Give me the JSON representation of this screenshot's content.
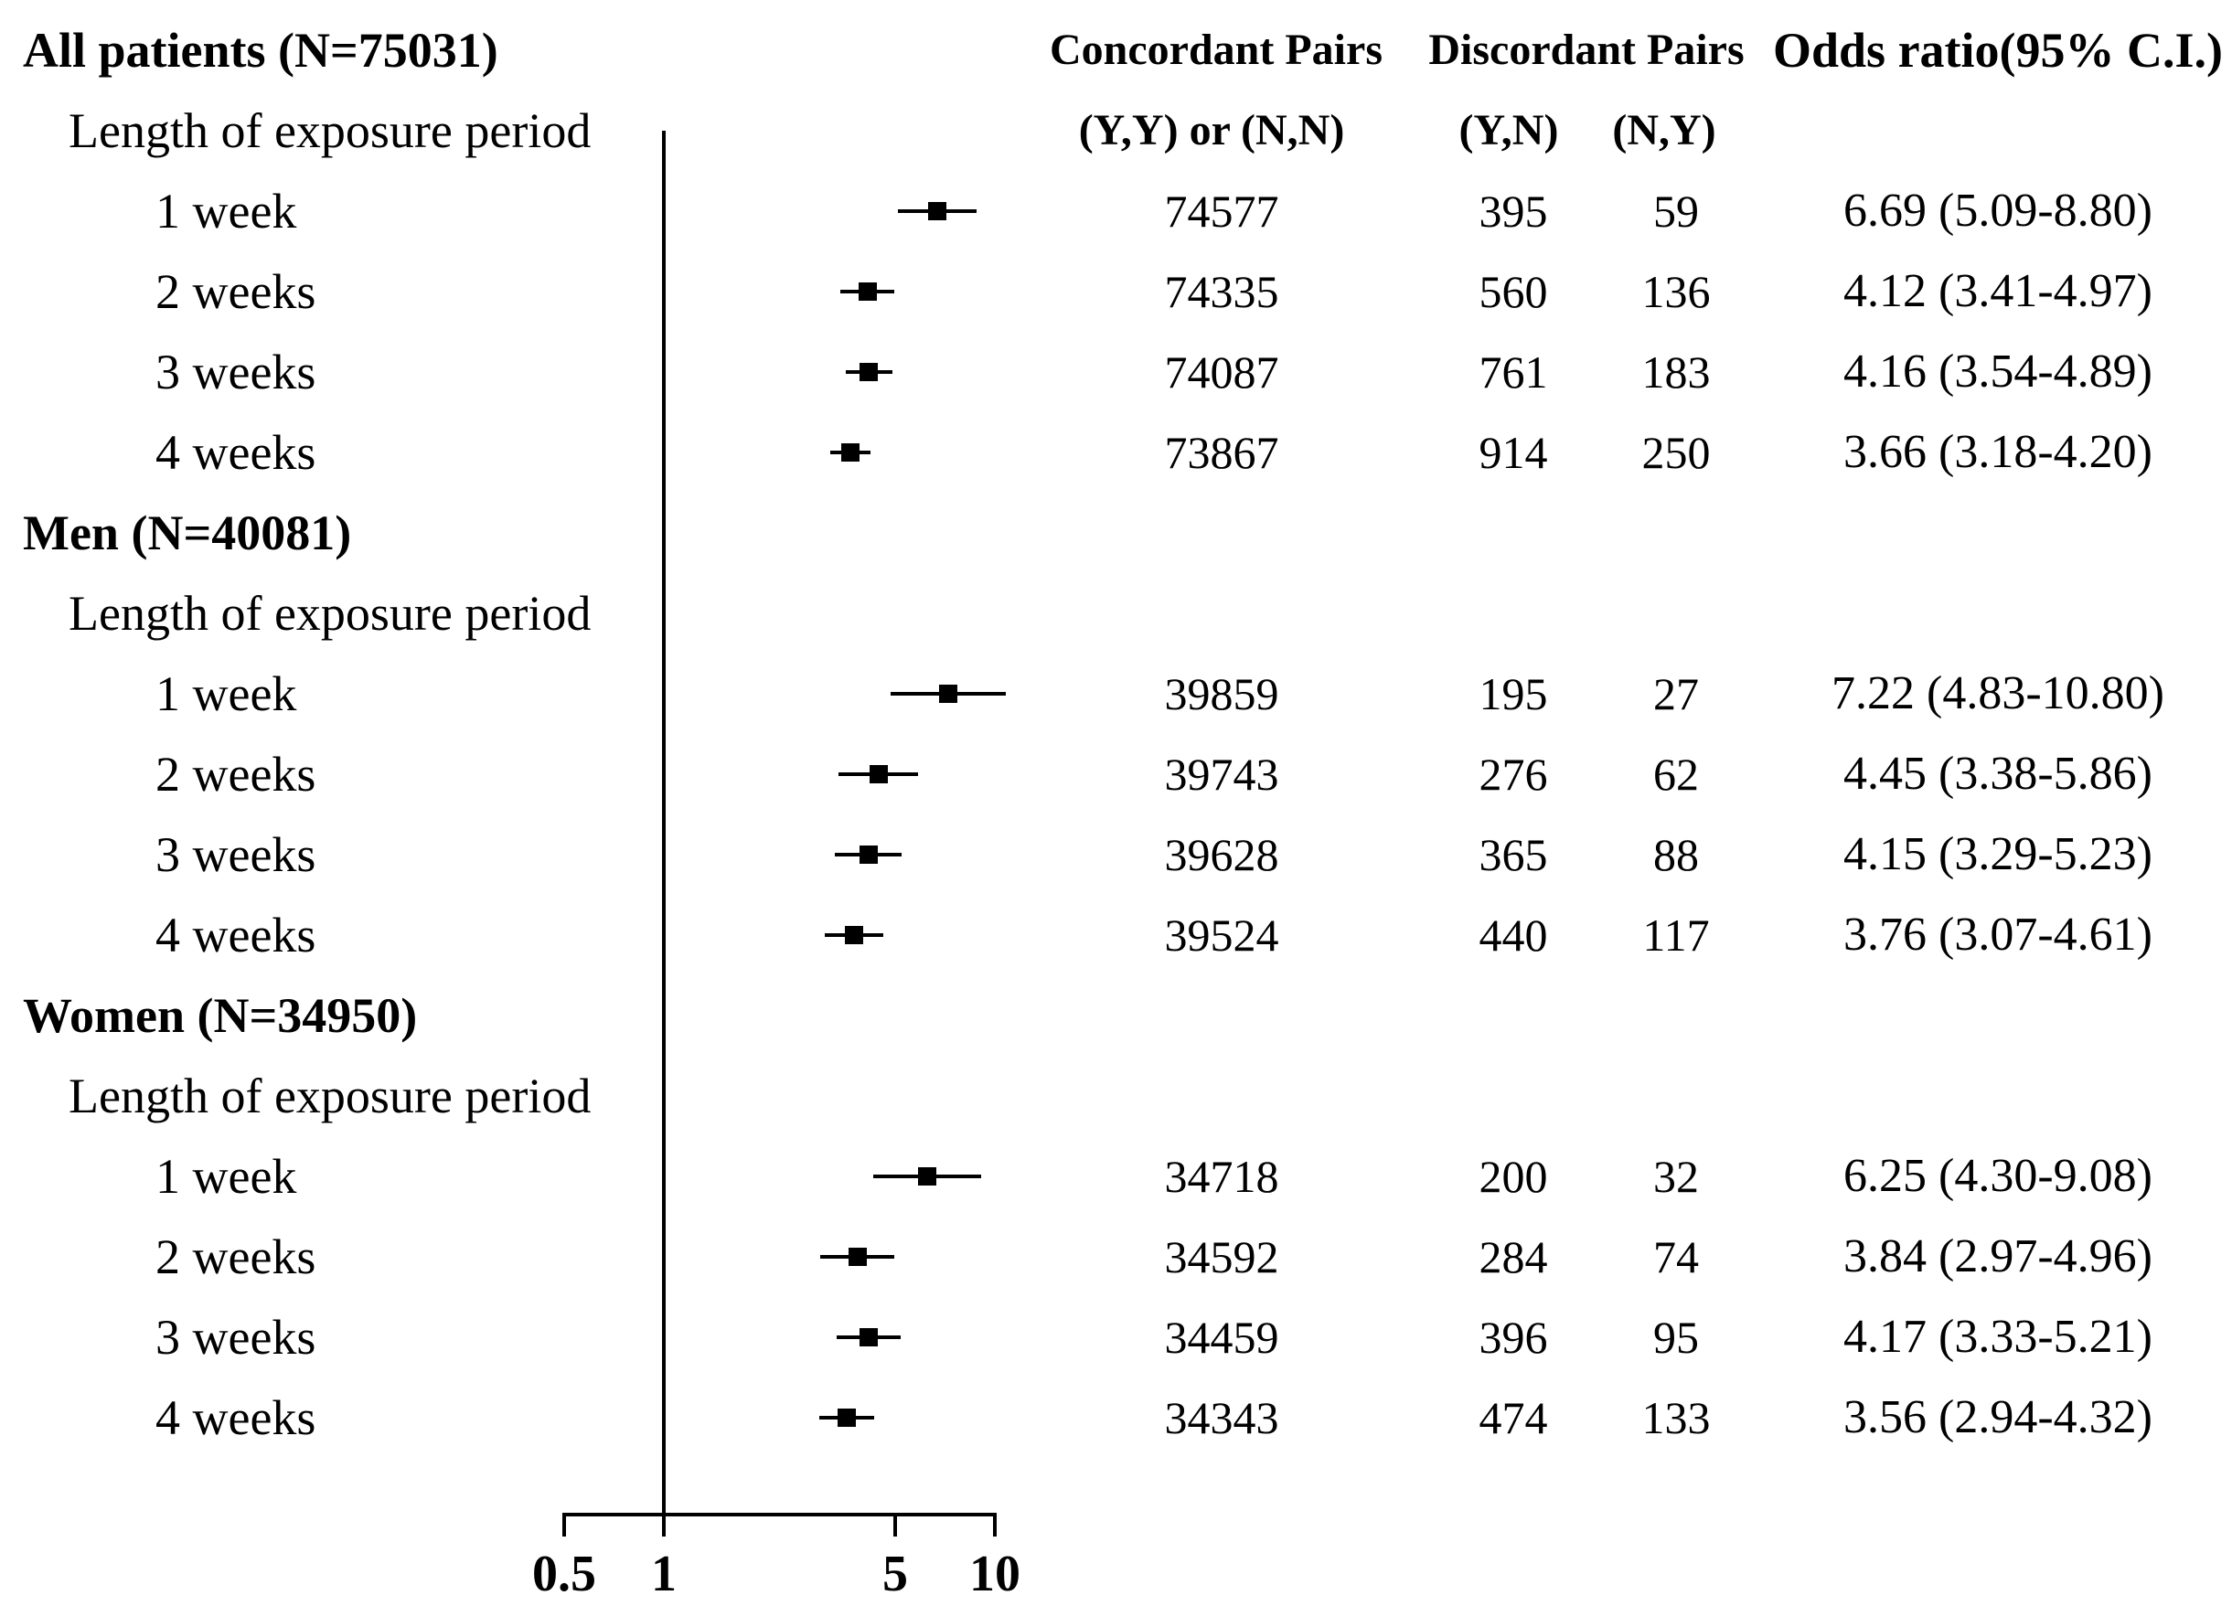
{
  "colors": {
    "foreground": "#000000",
    "background": "#ffffff"
  },
  "columns": {
    "concordant": {
      "title": "Concordant Pairs",
      "subtitle": "(Y,Y) or (N,N)"
    },
    "discordant": {
      "title": "Discordant Pairs",
      "sub_yn": "(Y,N)",
      "sub_ny": "(N,Y)"
    },
    "odds_ratio": {
      "title": "Odds ratio(95% C.I.)"
    }
  },
  "chart_data": {
    "type": "forest",
    "title": "",
    "marker": "square",
    "x_axis": {
      "scale": "log10",
      "range": [
        0.5,
        10
      ],
      "ticks": [
        0.5,
        1,
        5,
        10
      ],
      "tick_labels": [
        "0.5",
        "1",
        "5",
        "10"
      ],
      "reference_line": 1,
      "grid": false
    },
    "groups": [
      {
        "label": "All patients (N=75031)",
        "sublabel": "Length of exposure period",
        "rows": [
          {
            "label": "1 week",
            "concordant": 74577,
            "discordant_yn": 395,
            "discordant_ny": 59,
            "or": 6.69,
            "ci_low": 5.09,
            "ci_high": 8.8,
            "or_text": "6.69 (5.09-8.80)"
          },
          {
            "label": "2 weeks",
            "concordant": 74335,
            "discordant_yn": 560,
            "discordant_ny": 136,
            "or": 4.12,
            "ci_low": 3.41,
            "ci_high": 4.97,
            "or_text": "4.12 (3.41-4.97)"
          },
          {
            "label": "3 weeks",
            "concordant": 74087,
            "discordant_yn": 761,
            "discordant_ny": 183,
            "or": 4.16,
            "ci_low": 3.54,
            "ci_high": 4.89,
            "or_text": "4.16 (3.54-4.89)"
          },
          {
            "label": "4 weeks",
            "concordant": 73867,
            "discordant_yn": 914,
            "discordant_ny": 250,
            "or": 3.66,
            "ci_low": 3.18,
            "ci_high": 4.2,
            "or_text": "3.66 (3.18-4.20)"
          }
        ]
      },
      {
        "label": "Men (N=40081)",
        "sublabel": "Length of exposure period",
        "rows": [
          {
            "label": "1 week",
            "concordant": 39859,
            "discordant_yn": 195,
            "discordant_ny": 27,
            "or": 7.22,
            "ci_low": 4.83,
            "ci_high": 10.8,
            "or_text": "7.22 (4.83-10.80)"
          },
          {
            "label": "2 weeks",
            "concordant": 39743,
            "discordant_yn": 276,
            "discordant_ny": 62,
            "or": 4.45,
            "ci_low": 3.38,
            "ci_high": 5.86,
            "or_text": "4.45 (3.38-5.86)"
          },
          {
            "label": "3 weeks",
            "concordant": 39628,
            "discordant_yn": 365,
            "discordant_ny": 88,
            "or": 4.15,
            "ci_low": 3.29,
            "ci_high": 5.23,
            "or_text": "4.15 (3.29-5.23)"
          },
          {
            "label": "4 weeks",
            "concordant": 39524,
            "discordant_yn": 440,
            "discordant_ny": 117,
            "or": 3.76,
            "ci_low": 3.07,
            "ci_high": 4.61,
            "or_text": "3.76 (3.07-4.61)"
          }
        ]
      },
      {
        "label": "Women (N=34950)",
        "sublabel": "Length of exposure period",
        "rows": [
          {
            "label": "1 week",
            "concordant": 34718,
            "discordant_yn": 200,
            "discordant_ny": 32,
            "or": 6.25,
            "ci_low": 4.3,
            "ci_high": 9.08,
            "or_text": "6.25 (4.30-9.08)"
          },
          {
            "label": "2 weeks",
            "concordant": 34592,
            "discordant_yn": 284,
            "discordant_ny": 74,
            "or": 3.84,
            "ci_low": 2.97,
            "ci_high": 4.96,
            "or_text": "3.84 (2.97-4.96)"
          },
          {
            "label": "3 weeks",
            "concordant": 34459,
            "discordant_yn": 396,
            "discordant_ny": 95,
            "or": 4.17,
            "ci_low": 3.33,
            "ci_high": 5.21,
            "or_text": "4.17 (3.33-5.21)"
          },
          {
            "label": "4 weeks",
            "concordant": 34343,
            "discordant_yn": 474,
            "discordant_ny": 133,
            "or": 3.56,
            "ci_low": 2.94,
            "ci_high": 4.32,
            "or_text": "3.56 (2.94-4.32)"
          }
        ]
      }
    ]
  }
}
